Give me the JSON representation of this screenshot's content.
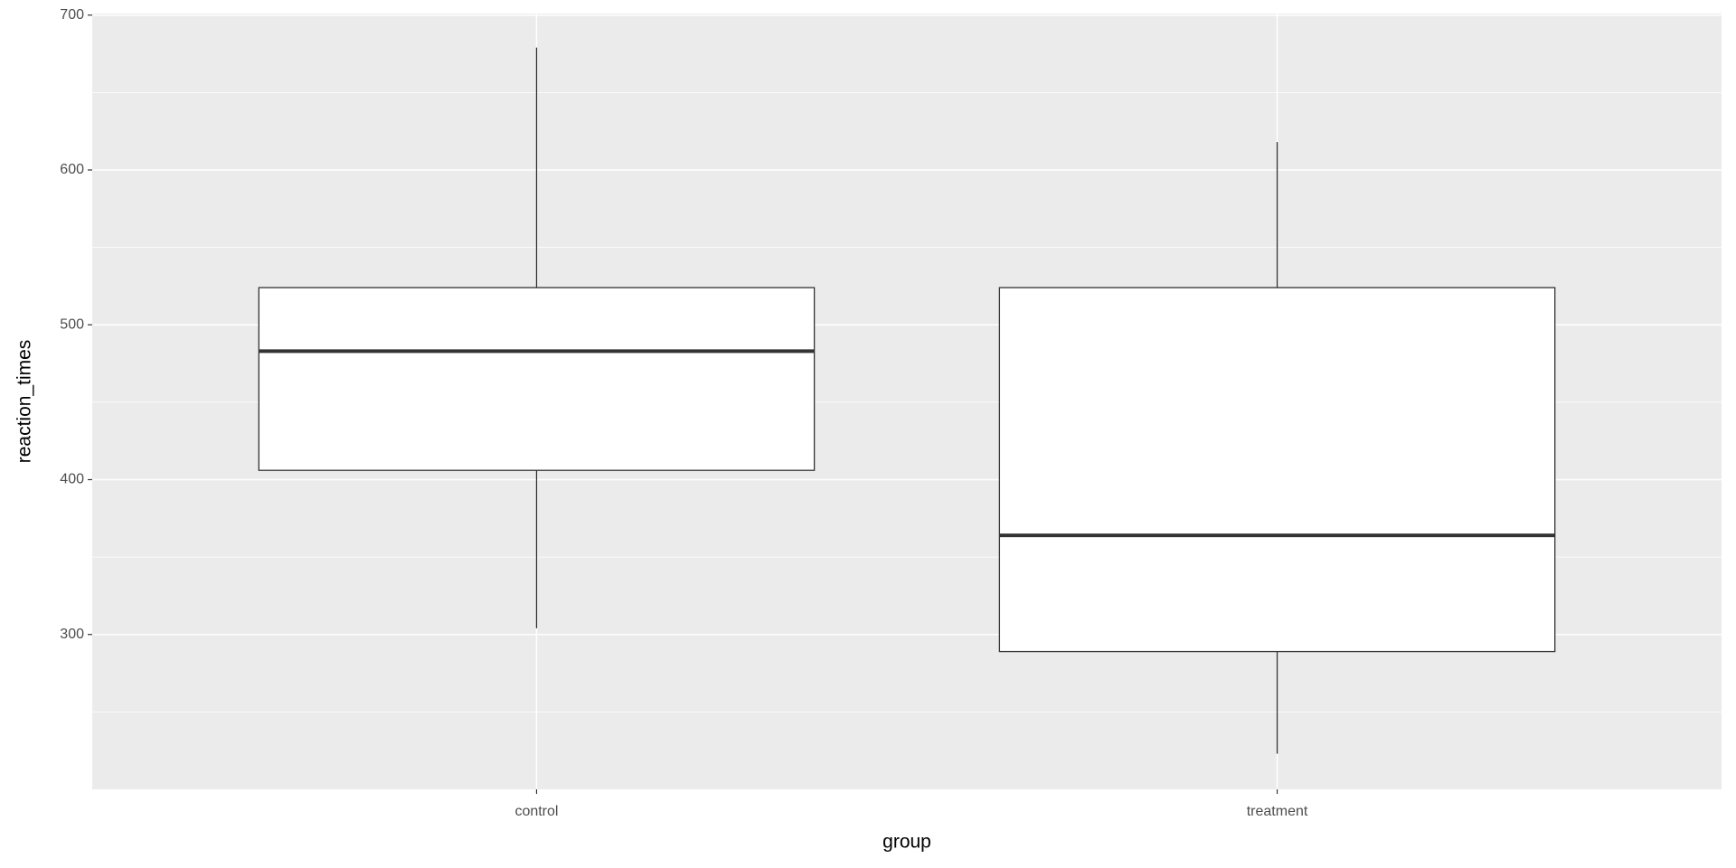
{
  "chart_data": {
    "type": "box",
    "x_label": "group",
    "y_label": "reaction_times",
    "categories": [
      "control",
      "treatment"
    ],
    "boxes": [
      {
        "min": 304,
        "q1": 406,
        "median": 483,
        "q3": 524,
        "max": 679
      },
      {
        "min": 223,
        "q1": 289,
        "median": 364,
        "q3": 524,
        "max": 618
      }
    ],
    "ylim": [
      200,
      701
    ],
    "yticks": [
      300,
      400,
      500,
      600,
      700
    ],
    "minor_yticks": [
      250,
      350,
      450,
      550,
      650
    ],
    "grid": true,
    "panel_color": "#ebebeb",
    "box_fill": "#ffffff",
    "line_color": "#333333"
  }
}
